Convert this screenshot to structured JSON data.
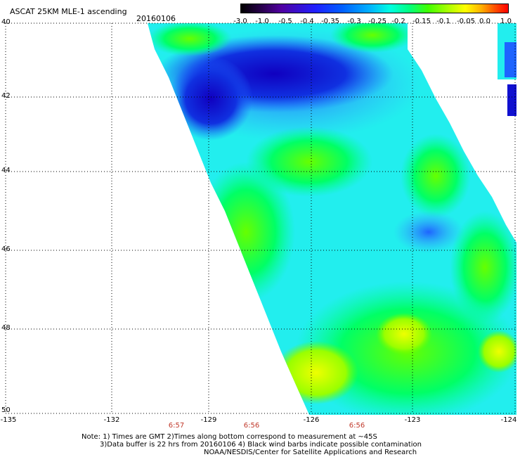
{
  "header": {
    "title": "ASCAT 25KM MLE-1 ascending",
    "date": "20160106"
  },
  "colorbar": {
    "ticks": [
      "-3.0",
      "-1.0",
      "-0.5",
      "-0.4",
      "-0.35",
      "-0.3",
      "-0.25",
      "-0.2",
      "-0.15",
      "-0.1",
      "-0.05",
      "0.0",
      "1.0"
    ]
  },
  "axes": {
    "lon_labels": [
      "-135",
      "-132",
      "-129",
      "-126",
      "-123",
      "-124"
    ],
    "lat_labels": [
      "40",
      "42",
      "44",
      "46",
      "48",
      "50"
    ],
    "times": [
      "6:57",
      "6:56",
      "6:56"
    ]
  },
  "notes": {
    "line1": "Note: 1) Times are GMT 2)Times along bottom correspond to measurement at ~45S",
    "line2": "3)Data buffer is 22 hrs from 20160106 4) Black wind barbs indicate possible contamination",
    "line3": "NOAA/NESDIS/Center for Satellite Applications and Research"
  },
  "colors": {
    "dark_blue": "#1010c8",
    "blue": "#1e64ff",
    "cyan": "#00ffff",
    "green": "#00ff66",
    "yellow_green": "#ccff00"
  }
}
